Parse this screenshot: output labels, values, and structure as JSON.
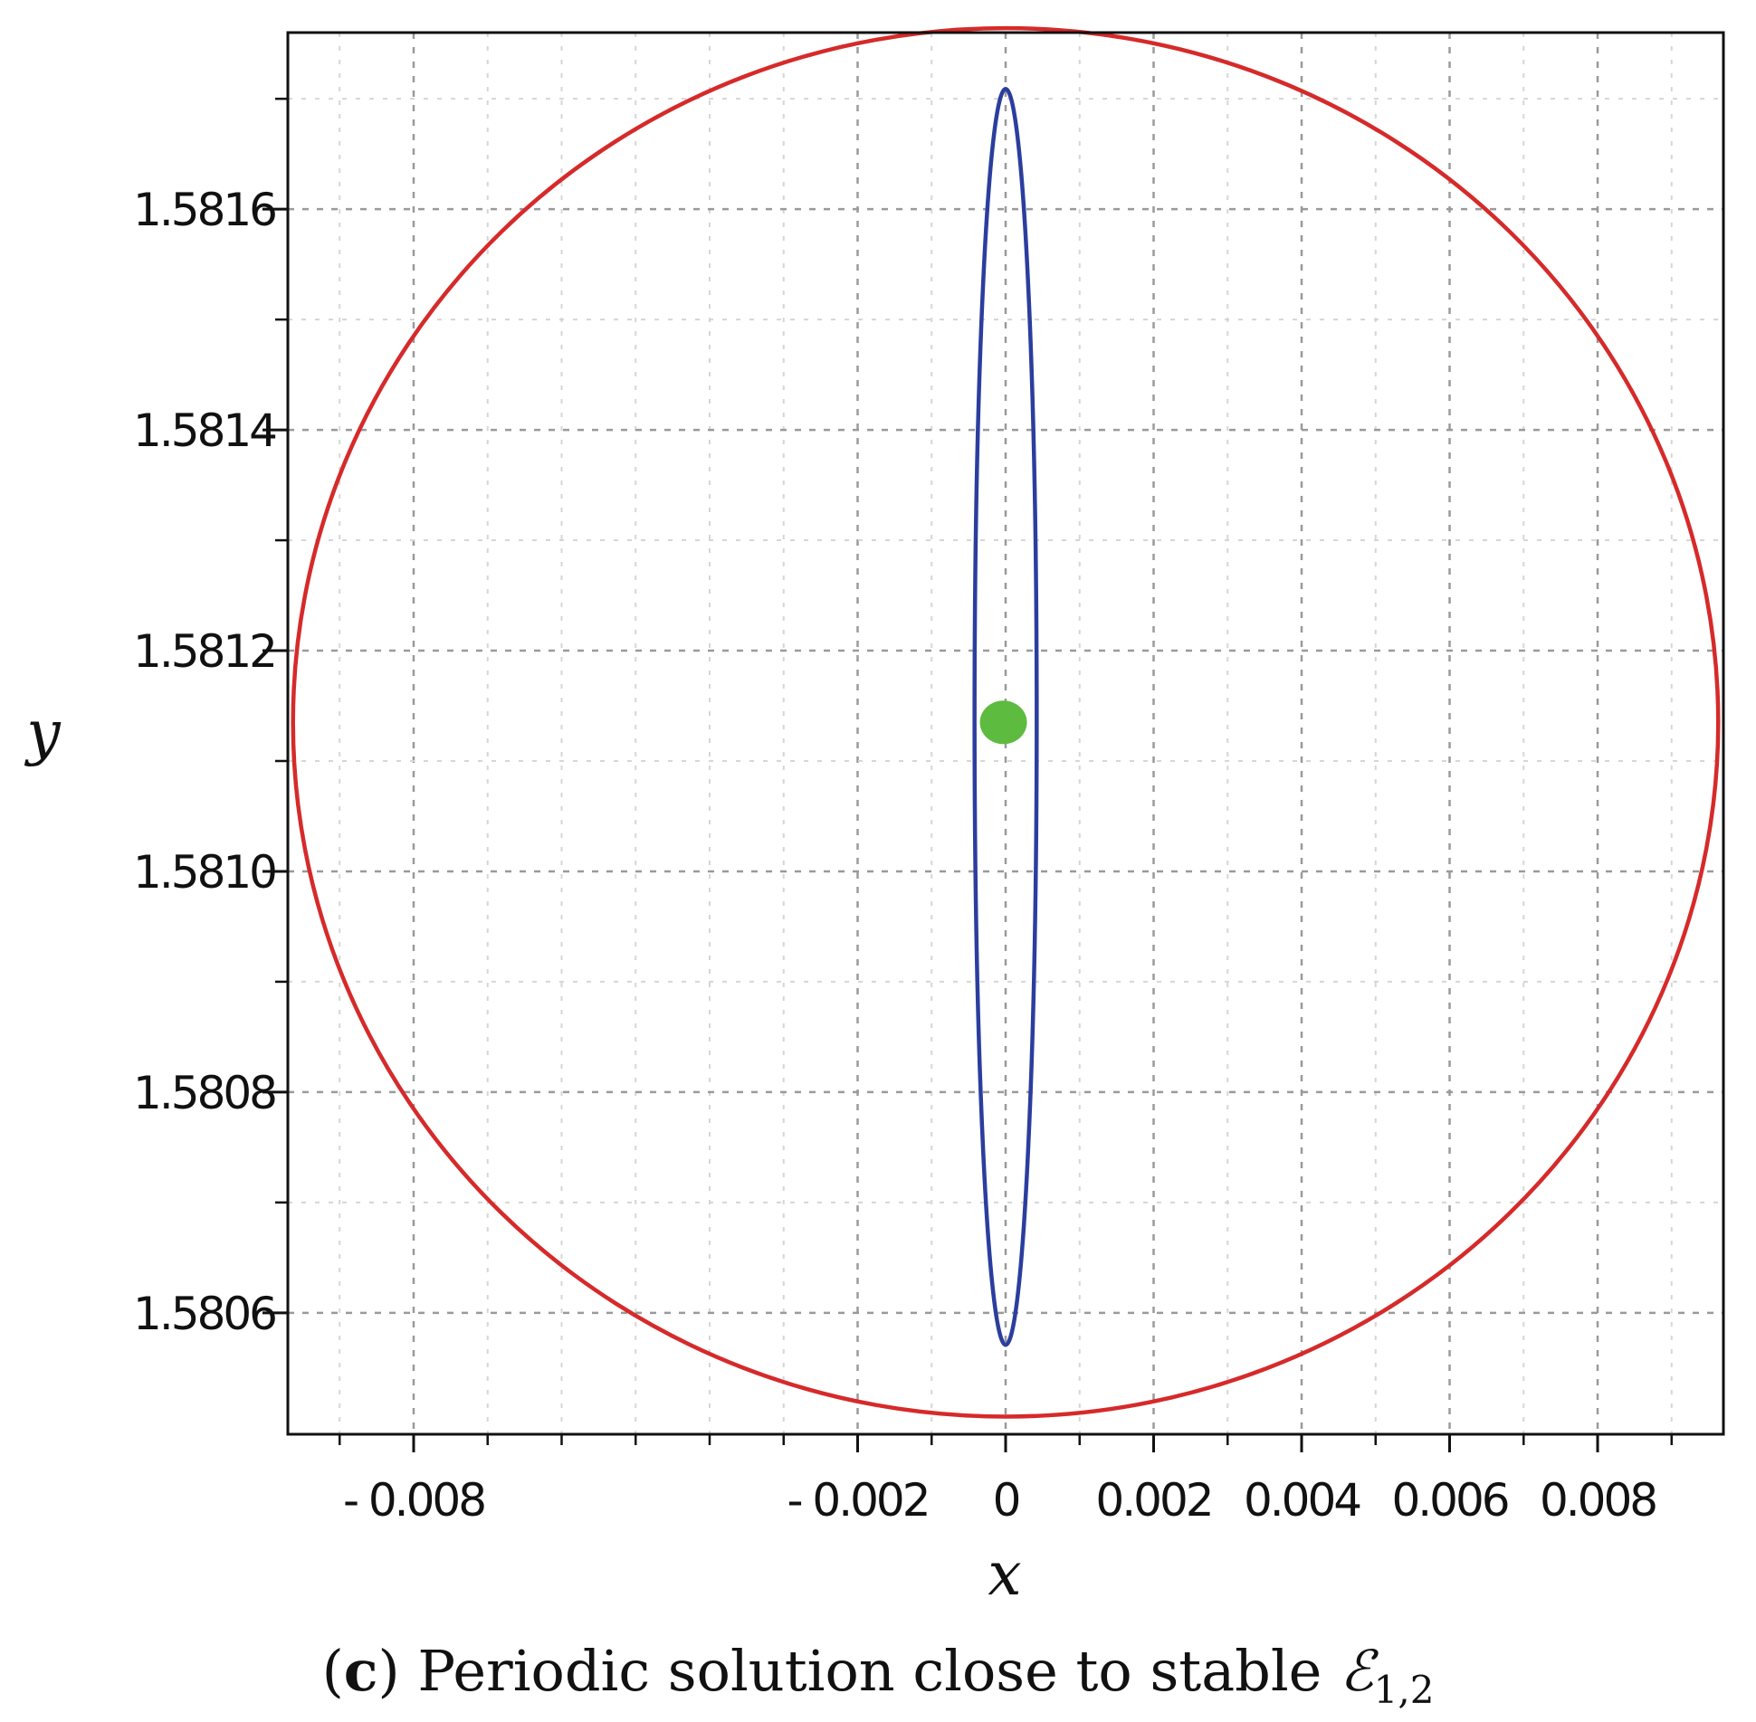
{
  "chart_data": {
    "type": "line",
    "caption": {
      "open_paren": "(",
      "letter": "c",
      "text": ") Periodic solution close to stable ",
      "symbol": "ℰ",
      "subscript": "1,2"
    },
    "xlabel": "x",
    "ylabel": "y",
    "xlim": [
      -0.0097,
      0.0097
    ],
    "ylim": [
      1.58049,
      1.58176
    ],
    "x_ticks": [
      {
        "value": -0.008,
        "label": "- 0.008"
      },
      {
        "value": -0.002,
        "label": "- 0.002"
      },
      {
        "value": 0,
        "label": "0"
      },
      {
        "value": 0.002,
        "label": "0.002"
      },
      {
        "value": 0.004,
        "label": "0.004"
      },
      {
        "value": 0.006,
        "label": "0.006"
      },
      {
        "value": 0.008,
        "label": "0.008"
      }
    ],
    "x_minor_ticks": [
      -0.009,
      -0.007,
      -0.006,
      -0.005,
      -0.004,
      -0.003,
      -0.001,
      0.001,
      0.003,
      0.005,
      0.007,
      0.009
    ],
    "y_ticks": [
      {
        "value": 1.5806,
        "label": "1.5806"
      },
      {
        "value": 1.5808,
        "label": "1.5808"
      },
      {
        "value": 1.581,
        "label": "1.5810"
      },
      {
        "value": 1.5812,
        "label": "1.5812"
      },
      {
        "value": 1.5814,
        "label": "1.5814"
      },
      {
        "value": 1.5816,
        "label": "1.5816"
      }
    ],
    "y_minor_ticks": [
      1.5807,
      1.5809,
      1.5811,
      1.5813,
      1.5815,
      1.5817
    ],
    "grid": true,
    "series": [
      {
        "kind": "ellipse",
        "color": "#d62a2a",
        "center": [
          0,
          1.581135
        ],
        "rx": 0.00963,
        "ry": 0.000629
      },
      {
        "kind": "ellipse",
        "color": "#2b3e9e",
        "center": [
          0,
          1.58114
        ],
        "rx": 0.00042,
        "ry": 0.000569
      },
      {
        "kind": "point",
        "color": "#5dbb3f",
        "x": -3e-05,
        "y": 1.581135
      }
    ]
  }
}
